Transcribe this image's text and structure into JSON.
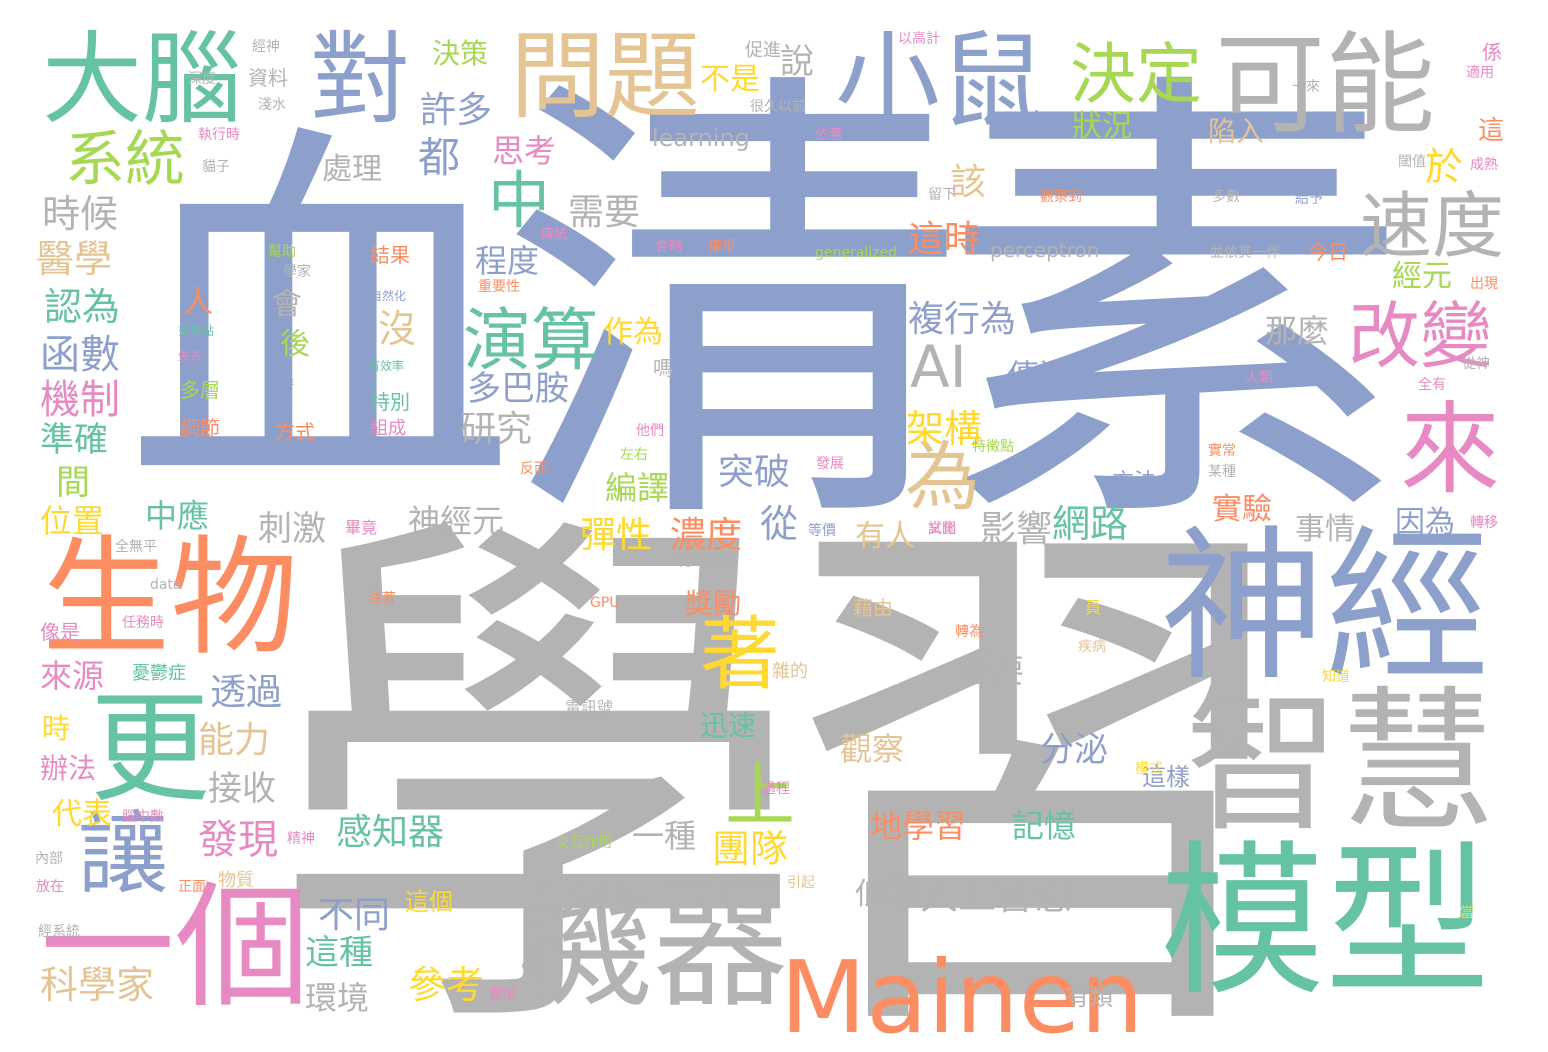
{
  "palette": {
    "teal": "#66c2a5",
    "orange": "#fc8d62",
    "blue": "#8da0cb",
    "pink": "#e78ac3",
    "green": "#a6d854",
    "yellow": "#ffd92f",
    "tan": "#e5c494",
    "gray": "#b3b3b3"
  },
  "words": {
    "xue_xi": "學習",
    "qing_su": "清素",
    "xue": "血",
    "shen_jing": "神經",
    "mo_xing": "模型",
    "zhi_hui": "智慧",
    "ji_qi": "機器",
    "mainen": "Mainen",
    "sheng_wu": "生物",
    "yi_ge": "一個",
    "geng": "更",
    "rang": "讓",
    "da_nao": "大腦",
    "dui": "對",
    "wen_ti": "問題",
    "xiao_shu": "小鼠",
    "ke_neng": "可能",
    "jue_ding": "決定",
    "xi_tong": "系統",
    "zhong": "中",
    "su_du": "速度",
    "gai_bian": "改變",
    "lai": "來",
    "yan_suan": "演算",
    "wei": "為",
    "ai": "AI",
    "zhe": "著",
    "shang": "上",
    "jue_ce": "決策",
    "xu_duo": "許多",
    "shuo": "說",
    "bu_shi": "不是",
    "zhuang_kuang": "狀況",
    "xian_ru": "陷入",
    "learning": "learning",
    "dou": "都",
    "si_kao": "思考",
    "chu_li": "處理",
    "gai": "該",
    "yu": "於",
    "shi_hou": "時候",
    "xu_yao": "需要",
    "zhe_shi": "這時",
    "yi_xue": "醫學",
    "cheng_du": "程度",
    "jing_yuan": "經元",
    "ren_wei": "認為",
    "fu_xing_wei": "複行為",
    "han_shu": "函數",
    "na_me": "那麼",
    "mei": "沒",
    "zuo_wei": "作為",
    "duo_ba_an": "多巴胺",
    "chuan_di": "傳遞",
    "ji_zhi": "機制",
    "yan_jiu": "研究",
    "jia_gou": "架構",
    "zhun_que": "準確",
    "tu_po": "突破",
    "jian": "間",
    "bian_yi": "編譯",
    "fang_fa": "方法",
    "shen_jing_yuan": "神經元",
    "shi_yan": "實驗",
    "yin_wei": "因為",
    "wei_zhi": "位置",
    "zhong_ying": "中應",
    "ci_ji": "刺激",
    "dan_xing": "彈性",
    "nong_du": "濃度",
    "cong": "從",
    "ying_xiang": "影響",
    "wang_lu": "網路",
    "shi_qing": "事情",
    "you_ren": "有人",
    "jiang_li": "獎勵",
    "lai_yuan": "來源",
    "tou_guo": "透過",
    "zhong_yao": "重要",
    "neng_li": "能力",
    "xun_su": "迅速",
    "shi": "時",
    "ban_fa": "辦法",
    "guan_cha": "觀察",
    "fen_mi": "分泌",
    "jie_shou": "接收",
    "fa_xian": "發現",
    "gan_zhi_qi": "感知器",
    "yi_zhong": "一種",
    "tuan_dui": "團隊",
    "di_xue_xi": "地學習",
    "ji_yi": "記憶",
    "dai_biao": "代表",
    "zhe_yang": "這樣",
    "bu_tong": "不同",
    "di_chao": "低潮",
    "ren_gong_zhi_hui": "人工智慧",
    "zhe_ge": "這個",
    "zhe_zhong": "這種",
    "ke_xue_jia": "科學家",
    "can_kao": "參考",
    "huan_jing": "環境",
    "you_lei": "有類",
    "ren": "人",
    "hui": "會",
    "hou": "後",
    "fang_shi": "方式",
    "duo_ceng": "多層",
    "diao_jie": "調節",
    "te_bie": "特別",
    "zu_cheng": "組成",
    "jie_guo": "結果",
    "zi_liao": "資料",
    "perceptron": "perceptron",
    "jin_ri": "今日",
    "bing_yi_qi": "並依其一伴",
    "xiang_shi": "像是",
    "data": "data",
    "gpu": "GPU",
    "you_yu_zheng": "憂鬱症",
    "za_de": "雜的",
    "dian_xun_hao": "電訊號",
    "yi_you_jin": "藉由",
    "zhuan_wei": "轉為",
    "zhi_dao": "知道",
    "ji_bing": "疾病",
    "generalized": "generalized",
    "yi_lai": "一來",
    "jing_shen": "精神",
    "wu_zhi": "物質",
    "nei_bu": "內部",
    "jiao_hu_zuo_yong": "交互作用",
    "guo_cheng": "過程",
    "mo_shi": "模式",
    "yin_qi": "引起",
    "jing_xi_tong": "經系統",
    "fang_zai": "放在",
    "zheng_mian": "正面",
    "nao_zhong_shu": "腦中數",
    "shi_tu": "試圖",
    "fa_zhan": "發展",
    "te_zheng_dian": "特徵點",
    "zuo_you": "左右",
    "ta_men": "他們",
    "bi_jing": "畢竟",
    "zhu_zhe": "注著",
    "ren_wu_shi": "任務時",
    "quan_wu_ping": "全無平",
    "chuan_dao_wu_zhi": "傳導物質",
    "fan_wen": "反而",
    "deng_jia": "等價",
    "wen_hua": "文化",
    "hui_shi": "會時",
    "zhuan_yi": "轉移",
    "shi_chang": "實常",
    "mou_zhong": "某種",
    "ren_lei": "人類",
    "cong_shen": "從神",
    "quan_you": "全有",
    "chu_xian": "出現",
    "cheng_ren": "成熟",
    "yu_zhi": "閾值",
    "shi_yong": "適用",
    "xi": "係",
    "guan_cha_dao": "觀察到",
    "duo_shu": "多數",
    "gei_yu": "給予",
    "jing_shen2": "經神",
    "shen_du": "深度",
    "cu_jin": "促進",
    "yi_gao_ji": "以高計",
    "hen_jiu_yi_qian": "很久以前",
    "hen_shui": "淺水",
    "xuan_zhe": "依著",
    "zhi_xing_shi": "執行時",
    "mao_zi": "貓子",
    "liu_xia": "留下",
    "chuan_tong": "傳統",
    "bang_zhu": "幫助",
    "xue_jia": "學家",
    "zhong_yao_xing": "重要性",
    "quan_zhong": "權重",
    "zi_ran_hua": "自然化",
    "jiao_hui_dian": "交會點",
    "shi_qu": "失去",
    "zhi_dai": "攜帶",
    "lv_shi": "率時",
    "you_xiao_lv": "有效率",
    "zhe2": "這",
    "ma": "嗎",
    "dang": "當",
    "ren_he_shi": "任何時",
    "yuan": "員",
    "gui_dan": "隨機",
    "zheng_ti": "正體",
    "jiang_shuo": "講說",
    "hao_shi": "好事",
    "jiang_hui": "將會",
    "zhi_jie": "直接"
  }
}
